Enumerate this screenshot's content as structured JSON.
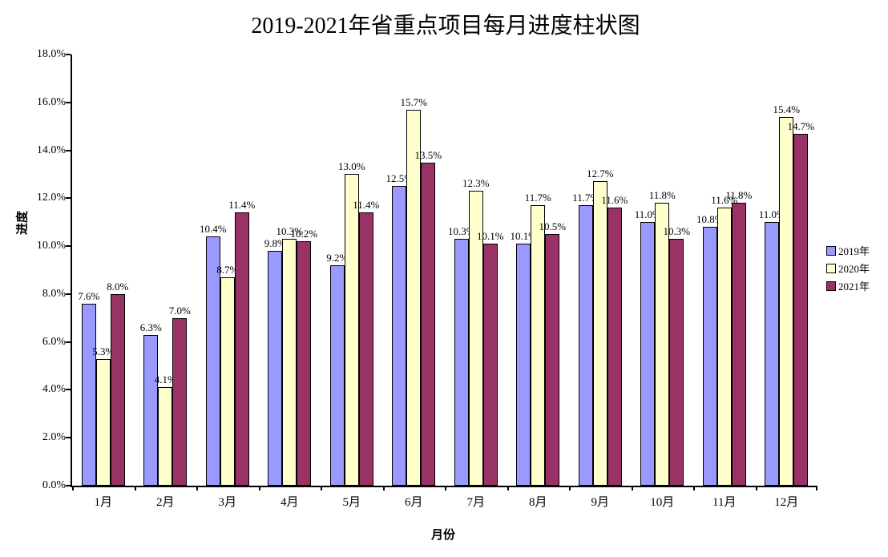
{
  "title": "2019-2021年省重点项目每月进度柱状图",
  "chart_data": {
    "type": "bar",
    "title": "2019-2021年省重点项目每月进度柱状图",
    "xlabel": "月份",
    "ylabel": "进度",
    "categories": [
      "1月",
      "2月",
      "3月",
      "4月",
      "5月",
      "6月",
      "7月",
      "8月",
      "9月",
      "10月",
      "11月",
      "12月"
    ],
    "series": [
      {
        "name": "2019年",
        "color": "#9999FF",
        "values": [
          7.6,
          6.3,
          10.4,
          9.8,
          9.2,
          12.5,
          10.3,
          10.1,
          11.7,
          11.0,
          10.8,
          11.0
        ]
      },
      {
        "name": "2020年",
        "color": "#FFFFCC",
        "values": [
          5.3,
          4.1,
          8.7,
          10.3,
          13.0,
          15.7,
          12.3,
          11.7,
          12.7,
          11.8,
          11.6,
          15.4
        ]
      },
      {
        "name": "2021年",
        "color": "#993366",
        "values": [
          8.0,
          7.0,
          11.4,
          10.2,
          11.4,
          13.5,
          10.1,
          10.5,
          11.6,
          10.3,
          11.8,
          14.7
        ]
      }
    ],
    "ylim": [
      0,
      18
    ],
    "ytick_step": 2,
    "ytick_labels": [
      "0.0%",
      "2.0%",
      "4.0%",
      "6.0%",
      "8.0%",
      "10.0%",
      "12.0%",
      "14.0%",
      "16.0%",
      "18.0%"
    ],
    "data_label_suffix": "%",
    "bar_border_color": "#000000",
    "axis_color": "#000000",
    "grid": false,
    "legend_position": "right",
    "data_labels": true
  }
}
